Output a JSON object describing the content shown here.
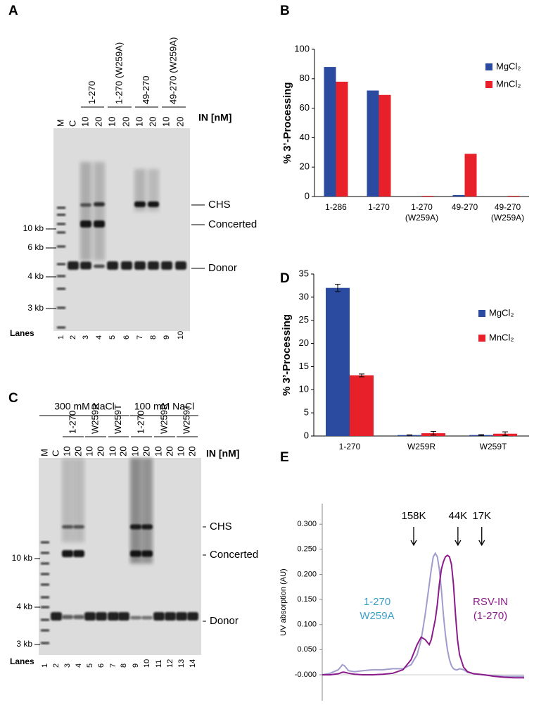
{
  "figure": {
    "panel_letters": [
      "A",
      "B",
      "C",
      "D",
      "E"
    ],
    "gel_a": {
      "groups": [
        "1-270",
        "1-270 (W259A)",
        "49-270",
        "49-270 (W259A)"
      ],
      "lane_labels": [
        "M",
        "C",
        "10",
        "20",
        "10",
        "20",
        "10",
        "20",
        "10",
        "20"
      ],
      "in_label": "IN [nM]",
      "band_labels": [
        "CHS",
        "Concerted",
        "Donor"
      ],
      "size_markers": [
        "10 kb",
        "6 kb",
        "4 kb",
        "3 kb"
      ],
      "lanes_label": "Lanes",
      "lane_numbers": [
        1,
        2,
        3,
        4,
        5,
        6,
        7,
        8,
        9,
        10
      ]
    },
    "gel_c": {
      "conditions": [
        "300 mM NaCl",
        "100 mM NaCl"
      ],
      "groups": [
        "1-270",
        "W259R",
        "W259T",
        "1-270",
        "W259R",
        "W259T"
      ],
      "lane_labels": [
        "M",
        "C",
        "10",
        "20",
        "10",
        "20",
        "10",
        "20",
        "10",
        "20",
        "10",
        "20",
        "10",
        "20"
      ],
      "in_label": "IN [nM]",
      "band_labels": [
        "CHS",
        "Concerted",
        "Donor"
      ],
      "size_markers": [
        "10 kb",
        "4 kb",
        "3 kb"
      ],
      "lanes_label": "Lanes",
      "lane_numbers": [
        1,
        2,
        3,
        4,
        5,
        6,
        7,
        8,
        9,
        10,
        11,
        12,
        13,
        14
      ]
    }
  },
  "chart_data": [
    {
      "type": "bar",
      "ylabel": "% 3’-Processing",
      "categories": [
        "1-286",
        "1-270",
        "1-270 (W259A)",
        "49-270",
        "49-270 (W259A)"
      ],
      "series": [
        {
          "name": "MgCl₂",
          "color": "#2b4ba0",
          "values": [
            88,
            72,
            0,
            1,
            0
          ]
        },
        {
          "name": "MnCl₂",
          "color": "#e8202a",
          "values": [
            78,
            69,
            0.5,
            29,
            0.5
          ]
        }
      ],
      "ylim": [
        0,
        100
      ],
      "yticks": [
        0,
        20,
        40,
        60,
        80,
        100
      ]
    },
    {
      "type": "bar",
      "ylabel": "% 3’-Processing",
      "categories": [
        "1-270",
        "W259R",
        "W259T"
      ],
      "series": [
        {
          "name": "MgCl₂",
          "color": "#2b4ba0",
          "values": [
            32,
            0.2,
            0.2
          ],
          "errors": [
            0.8,
            0.05,
            0.1
          ]
        },
        {
          "name": "MnCl₂",
          "color": "#e8202a",
          "values": [
            13.1,
            0.6,
            0.5
          ],
          "errors": [
            0.3,
            0.4,
            0.4
          ]
        }
      ],
      "ylim": [
        0,
        35
      ],
      "yticks": [
        0,
        5,
        10,
        15,
        20,
        25,
        30,
        35
      ]
    },
    {
      "type": "line",
      "ylabel": "UV absorption (AU)",
      "x": [
        0,
        4,
        8,
        10,
        11,
        13,
        16,
        20,
        25,
        30,
        35,
        40,
        44,
        47,
        49,
        51,
        53,
        54,
        55,
        56,
        57,
        58,
        59,
        60,
        61,
        62,
        63,
        64,
        65,
        66,
        67,
        68,
        70,
        72,
        75,
        80,
        85,
        90,
        95,
        100
      ],
      "series": [
        {
          "name": "1-270 W259A",
          "color": "#a09ccc",
          "label_color": "#3aa0c8",
          "values": [
            0,
            0.003,
            0.01,
            0.02,
            0.018,
            0.008,
            0.006,
            0.008,
            0.01,
            0.01,
            0.012,
            0.012,
            0.02,
            0.04,
            0.07,
            0.12,
            0.18,
            0.21,
            0.235,
            0.242,
            0.235,
            0.21,
            0.17,
            0.12,
            0.08,
            0.05,
            0.03,
            0.018,
            0.012,
            0.01,
            0.01,
            0.012,
            0.01,
            0.005,
            0.002,
            0,
            -0.002,
            -0.003,
            -0.003,
            -0.003
          ]
        },
        {
          "name": "RSV-IN (1-270)",
          "color": "#8b1a8b",
          "label_color": "#8b1a8b",
          "values": [
            0,
            0,
            0.002,
            0.005,
            0.005,
            0.003,
            0.001,
            0,
            0,
            0.001,
            0.003,
            0.01,
            0.03,
            0.06,
            0.075,
            0.07,
            0.06,
            0.07,
            0.09,
            0.11,
            0.14,
            0.18,
            0.21,
            0.225,
            0.235,
            0.238,
            0.235,
            0.22,
            0.18,
            0.12,
            0.07,
            0.04,
            0.015,
            0.006,
            0.002,
            0,
            -0.003,
            -0.005,
            -0.006,
            -0.006
          ]
        }
      ],
      "markers": [
        {
          "label": "158K",
          "x": 45.3
        },
        {
          "label": "44K",
          "x": 67.2
        },
        {
          "label": "17K",
          "x": 79
        }
      ],
      "xlim": [
        0,
        100
      ],
      "ylim": [
        -0.052,
        0.341
      ],
      "yticks": [
        {
          "value": 0,
          "label": "-0.000"
        },
        {
          "value": 0.05,
          "label": "0.050"
        },
        {
          "value": 0.1,
          "label": "0.100"
        },
        {
          "value": 0.15,
          "label": "0.150"
        },
        {
          "value": 0.2,
          "label": "0.200"
        },
        {
          "value": 0.25,
          "label": "0.250"
        },
        {
          "value": 0.3,
          "label": "0.300"
        }
      ]
    }
  ]
}
